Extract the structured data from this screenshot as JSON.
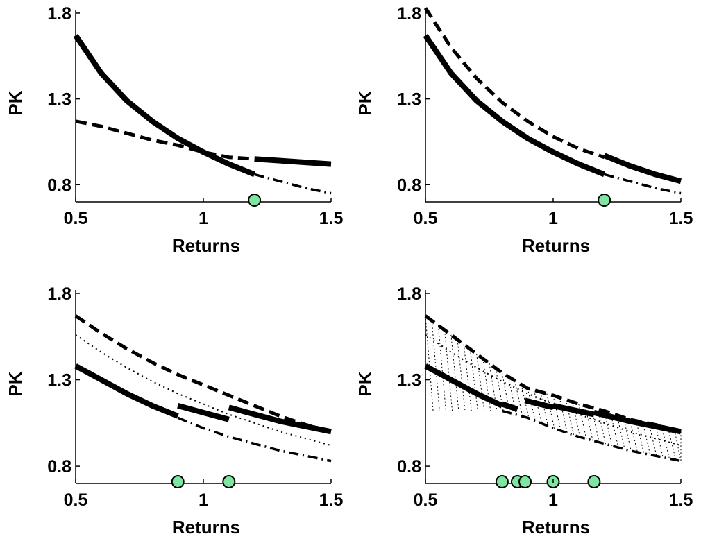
{
  "chart_data": [
    {
      "type": "line",
      "xlabel": "Returns",
      "ylabel": "PK",
      "xlim": [
        0.5,
        1.5
      ],
      "ylim": [
        0.7,
        1.82
      ],
      "xticks": [
        "0.5",
        "1",
        "1.5"
      ],
      "yticks": [
        "0.8",
        "1.3",
        "1.8"
      ],
      "grid": false,
      "series": [
        {
          "style": "solid-thick",
          "x": [
            0.5,
            0.6,
            0.7,
            0.8,
            0.9,
            1.0,
            1.1,
            1.2
          ],
          "y": [
            1.67,
            1.45,
            1.29,
            1.17,
            1.07,
            0.99,
            0.92,
            0.86
          ]
        },
        {
          "style": "solid-thick",
          "x": [
            1.2,
            1.3,
            1.4,
            1.5
          ],
          "y": [
            0.95,
            0.94,
            0.93,
            0.92
          ]
        },
        {
          "style": "dashed",
          "x": [
            0.5,
            0.6,
            0.7,
            0.8,
            0.9,
            1.0,
            1.1,
            1.2
          ],
          "y": [
            1.17,
            1.14,
            1.1,
            1.06,
            1.03,
            0.99,
            0.96,
            0.95
          ]
        },
        {
          "style": "dash-dot",
          "x": [
            1.2,
            1.3,
            1.4,
            1.5
          ],
          "y": [
            0.86,
            0.82,
            0.78,
            0.75
          ]
        }
      ],
      "points": [
        {
          "x": 1.2,
          "y": 0.71
        }
      ]
    },
    {
      "type": "line",
      "xlabel": "Returns",
      "ylabel": "PK",
      "xlim": [
        0.5,
        1.5
      ],
      "ylim": [
        0.7,
        1.82
      ],
      "xticks": [
        "0.5",
        "1",
        "1.5"
      ],
      "yticks": [
        "0.8",
        "1.3",
        "1.8"
      ],
      "grid": false,
      "series": [
        {
          "style": "solid-thick",
          "x": [
            0.5,
            0.6,
            0.7,
            0.8,
            0.9,
            1.0,
            1.1,
            1.2
          ],
          "y": [
            1.67,
            1.45,
            1.29,
            1.17,
            1.07,
            0.99,
            0.92,
            0.86
          ]
        },
        {
          "style": "solid-thick",
          "x": [
            1.2,
            1.3,
            1.4,
            1.5
          ],
          "y": [
            0.97,
            0.91,
            0.86,
            0.82
          ]
        },
        {
          "style": "dashed",
          "x": [
            0.5,
            0.6,
            0.7,
            0.8,
            0.9,
            1.0,
            1.1,
            1.2
          ],
          "y": [
            1.83,
            1.6,
            1.42,
            1.28,
            1.17,
            1.08,
            1.01,
            0.96
          ]
        },
        {
          "style": "dash-dot",
          "x": [
            1.2,
            1.3,
            1.4,
            1.5
          ],
          "y": [
            0.86,
            0.82,
            0.78,
            0.75
          ]
        }
      ],
      "points": [
        {
          "x": 1.2,
          "y": 0.71
        }
      ]
    },
    {
      "type": "line",
      "xlabel": "Returns",
      "ylabel": "PK",
      "xlim": [
        0.5,
        1.5
      ],
      "ylim": [
        0.7,
        1.82
      ],
      "xticks": [
        "0.5",
        "1",
        "1.5"
      ],
      "yticks": [
        "0.8",
        "1.3",
        "1.8"
      ],
      "grid": false,
      "series": [
        {
          "style": "solid-thick",
          "x": [
            0.5,
            0.6,
            0.7,
            0.8,
            0.9
          ],
          "y": [
            1.38,
            1.3,
            1.22,
            1.15,
            1.09
          ]
        },
        {
          "style": "solid-thick",
          "x": [
            0.9,
            1.0,
            1.1
          ],
          "y": [
            1.15,
            1.11,
            1.07
          ]
        },
        {
          "style": "solid-thick",
          "x": [
            1.1,
            1.2,
            1.3,
            1.4,
            1.5
          ],
          "y": [
            1.14,
            1.1,
            1.06,
            1.03,
            1.0
          ]
        },
        {
          "style": "dashed",
          "x": [
            0.5,
            0.6,
            0.7,
            0.8,
            0.9,
            1.0,
            1.1,
            1.2,
            1.3,
            1.4,
            1.5
          ],
          "y": [
            1.67,
            1.57,
            1.48,
            1.4,
            1.33,
            1.27,
            1.21,
            1.15,
            1.09,
            1.04,
            1.0
          ]
        },
        {
          "style": "dotted",
          "x": [
            0.5,
            0.6,
            0.7,
            0.8,
            0.9,
            1.0,
            1.1,
            1.2,
            1.3,
            1.4,
            1.5
          ],
          "y": [
            1.56,
            1.46,
            1.37,
            1.29,
            1.22,
            1.16,
            1.1,
            1.05,
            1.0,
            0.96,
            0.92
          ]
        },
        {
          "style": "dash-dot",
          "x": [
            0.9,
            1.0,
            1.1,
            1.2,
            1.3,
            1.4,
            1.5
          ],
          "y": [
            1.08,
            1.02,
            0.97,
            0.93,
            0.89,
            0.86,
            0.83
          ]
        }
      ],
      "points": [
        {
          "x": 0.9,
          "y": 0.71
        },
        {
          "x": 1.1,
          "y": 0.71
        }
      ]
    },
    {
      "type": "line",
      "xlabel": "Returns",
      "ylabel": "PK",
      "xlim": [
        0.5,
        1.5
      ],
      "ylim": [
        0.7,
        1.82
      ],
      "xticks": [
        "0.5",
        "1",
        "1.5"
      ],
      "yticks": [
        "0.8",
        "1.3",
        "1.8"
      ],
      "grid": false,
      "series": [
        {
          "style": "solid-thick",
          "x": [
            0.5,
            0.6,
            0.7,
            0.8
          ],
          "y": [
            1.38,
            1.3,
            1.22,
            1.15
          ]
        },
        {
          "style": "solid-thick",
          "x": [
            0.8,
            0.86
          ],
          "y": [
            1.16,
            1.13
          ]
        },
        {
          "style": "solid-thick",
          "x": [
            0.89,
            1.0
          ],
          "y": [
            1.18,
            1.14
          ]
        },
        {
          "style": "solid-thick",
          "x": [
            1.0,
            1.16
          ],
          "y": [
            1.15,
            1.1
          ]
        },
        {
          "style": "solid-thick",
          "x": [
            1.16,
            1.3,
            1.4,
            1.5
          ],
          "y": [
            1.11,
            1.06,
            1.03,
            1.0
          ]
        },
        {
          "style": "dashed",
          "x": [
            0.5,
            0.6,
            0.7,
            0.8,
            0.9,
            1.0,
            1.1,
            1.2,
            1.3,
            1.4,
            1.5
          ],
          "y": [
            1.67,
            1.56,
            1.45,
            1.34,
            1.25,
            1.21,
            1.16,
            1.12,
            1.07,
            1.04,
            1.0
          ]
        },
        {
          "style": "dotted",
          "x": [
            0.5,
            0.6,
            0.7,
            0.8,
            0.9,
            1.0,
            1.1,
            1.2,
            1.3,
            1.4,
            1.5
          ],
          "y": [
            1.56,
            1.46,
            1.37,
            1.29,
            1.22,
            1.16,
            1.1,
            1.05,
            1.0,
            0.96,
            0.92
          ]
        },
        {
          "style": "dash-dot",
          "x": [
            0.8,
            0.9,
            1.0,
            1.1,
            1.2,
            1.3,
            1.4,
            1.5
          ],
          "y": [
            1.12,
            1.08,
            1.02,
            0.97,
            0.93,
            0.89,
            0.86,
            0.83
          ]
        }
      ],
      "hatching": {
        "upper": "dashed",
        "lower": "dash-dot",
        "from": 0.5,
        "to": 1.5
      },
      "points": [
        {
          "x": 0.8,
          "y": 0.71
        },
        {
          "x": 0.86,
          "y": 0.71
        },
        {
          "x": 0.89,
          "y": 0.71
        },
        {
          "x": 1.0,
          "y": 0.71
        },
        {
          "x": 1.16,
          "y": 0.71
        }
      ]
    }
  ],
  "colors": {
    "marker_fill": "#7ee6a0",
    "ink": "#000000"
  }
}
